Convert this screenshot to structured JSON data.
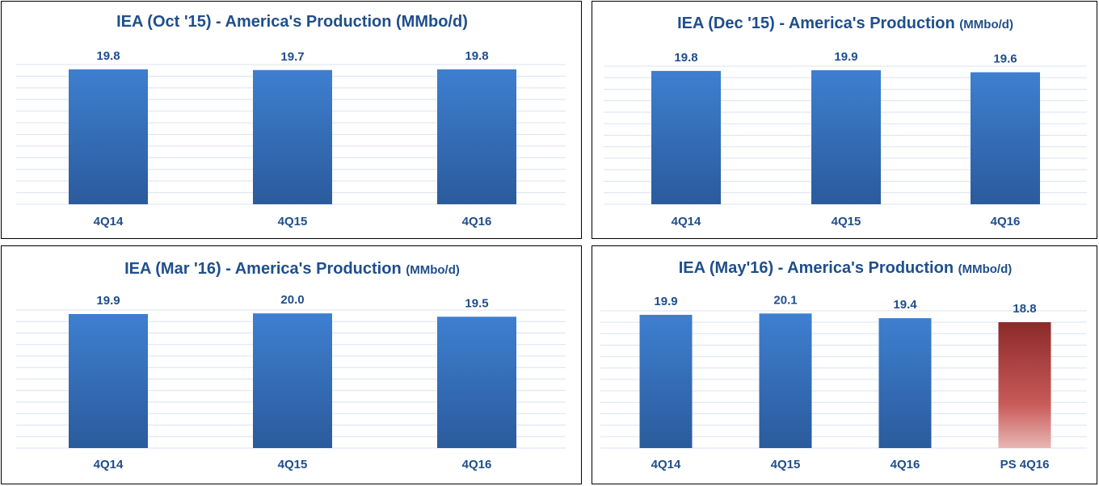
{
  "colors": {
    "title": "#1f4e8c",
    "bar_top": "#3e7fd0",
    "bar_bottom": "#2a5b9c",
    "ps_top": "#8b2a2a",
    "ps_bottom": "#e8b7b4",
    "grid": "#dbe3ef"
  },
  "chart_data": [
    {
      "type": "bar",
      "title": "IEA (Oct '15) - America's Production (MMbo/d)",
      "title_unit": "",
      "categories": [
        "4Q14",
        "4Q15",
        "4Q16"
      ],
      "values": [
        19.8,
        19.7,
        19.8
      ],
      "value_labels": [
        "19.8",
        "19.7",
        "19.8"
      ],
      "highlight": [
        false,
        false,
        false
      ],
      "ylim": [
        0,
        20.5
      ],
      "grid": true,
      "xlabel": "",
      "ylabel": ""
    },
    {
      "type": "bar",
      "title": "IEA (Dec '15) - America's Production",
      "title_unit": "(MMbo/d)",
      "categories": [
        "4Q14",
        "4Q15",
        "4Q16"
      ],
      "values": [
        19.8,
        19.9,
        19.6
      ],
      "value_labels": [
        "19.8",
        "19.9",
        "19.6"
      ],
      "highlight": [
        false,
        false,
        false
      ],
      "ylim": [
        0,
        20.5
      ],
      "grid": true,
      "xlabel": "",
      "ylabel": ""
    },
    {
      "type": "bar",
      "title": "IEA (Mar '16) - America's Production",
      "title_unit": "(MMbo/d)",
      "categories": [
        "4Q14",
        "4Q15",
        "4Q16"
      ],
      "values": [
        19.9,
        20.0,
        19.5
      ],
      "value_labels": [
        "19.9",
        "20.0",
        "19.5"
      ],
      "highlight": [
        false,
        false,
        false
      ],
      "ylim": [
        0,
        20.5
      ],
      "grid": true,
      "xlabel": "",
      "ylabel": ""
    },
    {
      "type": "bar",
      "title": "IEA (May'16) - America's Production",
      "title_unit": "(MMbo/d)",
      "categories": [
        "4Q14",
        "4Q15",
        "4Q16",
        "PS 4Q16"
      ],
      "values": [
        19.9,
        20.1,
        19.4,
        18.8
      ],
      "value_labels": [
        "19.9",
        "20.1",
        "19.4",
        "18.8"
      ],
      "highlight": [
        false,
        false,
        false,
        true
      ],
      "ylim": [
        0,
        20.5
      ],
      "grid": true,
      "xlabel": "",
      "ylabel": ""
    }
  ]
}
